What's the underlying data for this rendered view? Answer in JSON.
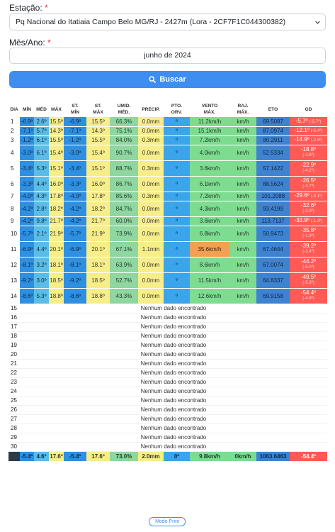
{
  "form": {
    "station_label": "Estação:",
    "station_required": "*",
    "station_value": "Pq Nacional do Itatiaia Campo Belo MG/RJ - 2427m (Lora - 2CF7F1C044300382)",
    "month_label": "Mês/Ano:",
    "month_required": "*",
    "month_value": "junho de 2024",
    "search_label": "Buscar"
  },
  "table": {
    "headers": {
      "dia": "DIA",
      "min": "MÍN",
      "med": "MÉD",
      "max": "MÁX",
      "st_min": "ST.\nMÍN",
      "st_max": "ST.\nMÁX",
      "umid": "UMID.\nMÉD.",
      "precip": "PRECIP.",
      "pto": "PTO.\nORV.",
      "vento": "VENTO\nMÁX.",
      "raj": "RAJ.\nMÁX.",
      "eto": "ETO",
      "gd": "GD"
    },
    "rows": [
      {
        "dia": "1",
        "min": "-6.9º",
        "med": "2.6º",
        "max": "15.5º",
        "st_min": "-6.9º",
        "st_max": "15.5º",
        "umid": "66.3%",
        "precip": "0.0mm",
        "pto": "º",
        "vento": "11.2km/h",
        "raj": "km/h",
        "eto": "69.5087",
        "gd": "-5.7º",
        "gd_sub": "(-5.7º)"
      },
      {
        "dia": "2",
        "min": "-7.1º",
        "med": "5.7º",
        "max": "14.3º",
        "st_min": "-7.1º",
        "st_max": "14.3º",
        "umid": "75.1%",
        "precip": "0.0mm",
        "pto": "º",
        "vento": "15.1km/h",
        "raj": "km/h",
        "eto": "87.0974",
        "gd": "-12.1º",
        "gd_sub": "(-6.4º)"
      },
      {
        "dia": "3",
        "min": "-1.2º",
        "med": "6.1º",
        "max": "15.5º",
        "st_min": "-1.2º",
        "st_max": "15.5º",
        "umid": "84.0%",
        "precip": "0.3mm",
        "pto": "º",
        "vento": "7.2km/h",
        "raj": "km/h",
        "eto": "80.2911",
        "gd": "-14.9º",
        "gd_sub": "(-2.8º)"
      },
      {
        "dia": "4",
        "min": "-3.0º",
        "med": "6.1º",
        "max": "15.4º",
        "st_min": "-3.0º",
        "st_max": "15.4º",
        "umid": "90.7%",
        "precip": "0.0mm",
        "pto": "º",
        "vento": "4.0km/h",
        "raj": "km/h",
        "eto": "52.5334",
        "gd": "-18.8º",
        "gd_sub": "(-3.8º)"
      },
      {
        "dia": "5",
        "min": "-3.4º",
        "med": "5.3º",
        "max": "15.1º",
        "st_min": "-3.4º",
        "st_max": "15.1º",
        "umid": "88.7%",
        "precip": "0.3mm",
        "pto": "º",
        "vento": "3.6km/h",
        "raj": "km/h",
        "eto": "57.1422",
        "gd": "-22.9º",
        "gd_sub": "(-4.2º)"
      },
      {
        "dia": "6",
        "min": "-3.3º",
        "med": "4.4º",
        "max": "16.0º",
        "st_min": "-3.3º",
        "st_max": "16.0º",
        "umid": "86.7%",
        "precip": "0.0mm",
        "pto": "º",
        "vento": "6.1km/h",
        "raj": "km/h",
        "eto": "88.5624",
        "gd": "-26.5º",
        "gd_sub": "(-3.7º)"
      },
      {
        "dia": "7",
        "min": "-4.0º",
        "med": "4.3º",
        "max": "17.8º",
        "st_min": "-4.0º",
        "st_max": "17.8º",
        "umid": "85.6%",
        "precip": "0.3mm",
        "pto": "º",
        "vento": "7.2km/h",
        "raj": "km/h",
        "eto": "101.2088",
        "gd": "-29.6º",
        "gd_sub": "(-3.1º)"
      },
      {
        "dia": "8",
        "min": "-4.2º",
        "med": "2.8º",
        "max": "18.2º",
        "st_min": "-4.2º",
        "st_max": "18.2º",
        "umid": "84.7%",
        "precip": "0.0mm",
        "pto": "º",
        "vento": "4.3km/h",
        "raj": "km/h",
        "eto": "93.4199",
        "gd": "-32.6º",
        "gd_sub": "(-3.0º)"
      },
      {
        "dia": "9",
        "min": "-4.2º",
        "med": "9.8º",
        "max": "21.7º",
        "st_min": "-4.2º",
        "st_max": "21.7º",
        "umid": "60.0%",
        "precip": "0.0mm",
        "pto": "º",
        "vento": "3.6km/h",
        "raj": "km/h",
        "eto": "113.7137",
        "gd": "-33.9º",
        "gd_sub": "(-1.3º)"
      },
      {
        "dia": "10",
        "min": "-5.7º",
        "med": "2.1º",
        "max": "21.9º",
        "st_min": "-5.7º",
        "st_max": "21.9º",
        "umid": "73.9%",
        "precip": "0.0mm",
        "pto": "º",
        "vento": "6.8km/h",
        "raj": "km/h",
        "eto": "50.9473",
        "gd": "-35.8º",
        "gd_sub": "(-1.9º)"
      },
      {
        "dia": "11",
        "min": "-6.9º",
        "med": "4.4º",
        "max": "20.1º",
        "st_min": "-6.9º",
        "st_max": "20.1º",
        "umid": "67.1%",
        "precip": "1.1mm",
        "pto": "º",
        "vento": "35.6km/h",
        "raj": "km/h",
        "eto": "67.4644",
        "gd": "-39.2º",
        "gd_sub": "(-3.4º)"
      },
      {
        "dia": "12",
        "min": "-8.1º",
        "med": "3.2º",
        "max": "18.1º",
        "st_min": "-8.1º",
        "st_max": "18.1º",
        "umid": "63.9%",
        "precip": "0.0mm",
        "pto": "º",
        "vento": "8.6km/h",
        "raj": "km/h",
        "eto": "67.0074",
        "gd": "-44.2º",
        "gd_sub": "(-5.0º)"
      },
      {
        "dia": "13",
        "min": "-9.2º",
        "med": "3.0º",
        "max": "18.5º",
        "st_min": "-9.2º",
        "st_max": "18.5º",
        "umid": "52.7%",
        "precip": "0.0mm",
        "pto": "º",
        "vento": "11.5km/h",
        "raj": "km/h",
        "eto": "64.8337",
        "gd": "-49.5º",
        "gd_sub": "(-5.3º)"
      },
      {
        "dia": "14",
        "min": "-8.6º",
        "med": "5.3º",
        "max": "18.8º",
        "st_min": "-8.6º",
        "st_max": "18.8º",
        "umid": "43.3%",
        "precip": "0.0mm",
        "pto": "º",
        "vento": "12.6km/h",
        "raj": "km/h",
        "eto": "69.9158",
        "gd": "-54.4º",
        "gd_sub": "(-4.9º)"
      }
    ],
    "empty_days": [
      "15",
      "16",
      "17",
      "18",
      "19",
      "20",
      "21",
      "22",
      "23",
      "24",
      "25",
      "26",
      "27",
      "28",
      "29",
      "30"
    ],
    "no_data_text": "Nenhum dado encontrado",
    "footer": {
      "min": "-5.4º",
      "med": "4.6º",
      "max": "17.6º",
      "st_min": "-5.4º",
      "st_max": "17.6º",
      "umid": "73.0%",
      "precip": "2.0mm",
      "pto": "0º",
      "vento": "9.8km/h",
      "raj": "0km/h",
      "eto": "1063.6463",
      "gd": "-54.4º"
    }
  },
  "print_label": "Modo Print",
  "colors": {
    "accent": "#3d8ef0",
    "min": "#2f8fe0",
    "max": "#f7ee8a",
    "umid": "#8fd6a0",
    "vento": "#7edc90",
    "vento_high": "#f2a054",
    "gd": "#ff5a55"
  }
}
